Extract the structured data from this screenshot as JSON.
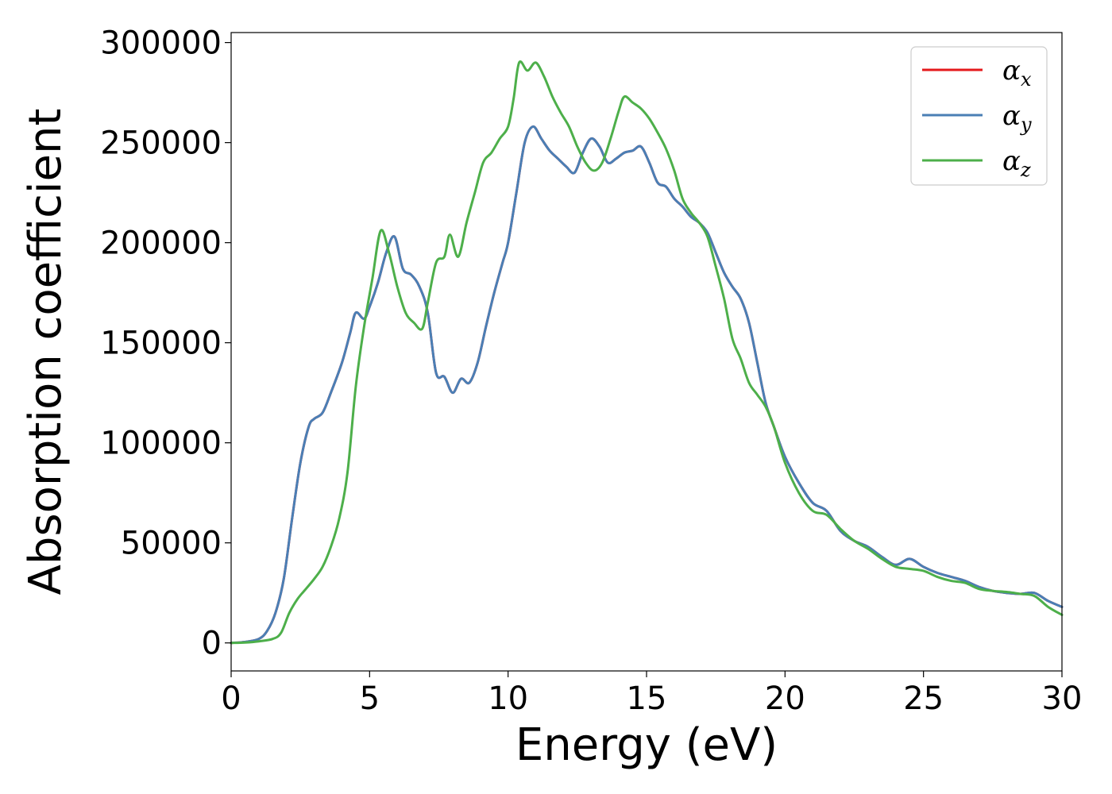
{
  "chart_data": {
    "type": "line",
    "title": "",
    "xlabel": "Energy (eV)",
    "ylabel": "Absorption coefficient",
    "xlim": [
      0,
      30
    ],
    "ylim": [
      -14000,
      305000
    ],
    "x_ticks": [
      0,
      5,
      10,
      15,
      20,
      25,
      30
    ],
    "y_ticks": [
      0,
      50000,
      100000,
      150000,
      200000,
      250000,
      300000
    ],
    "grid": false,
    "legend_position": "upper-right",
    "series": [
      {
        "name": "αx",
        "legend_symbol": "α",
        "legend_subscript": "x",
        "color": "#e41a1c",
        "x": [
          0,
          0.5,
          1.0,
          1.3,
          1.6,
          1.9,
          2.2,
          2.5,
          2.8,
          3.0,
          3.3,
          3.6,
          4.0,
          4.3,
          4.5,
          4.8,
          5.0,
          5.3,
          5.6,
          5.9,
          6.2,
          6.5,
          6.8,
          7.1,
          7.4,
          7.7,
          8.0,
          8.3,
          8.6,
          8.9,
          9.2,
          9.5,
          9.8,
          10.0,
          10.3,
          10.6,
          10.9,
          11.2,
          11.5,
          11.8,
          12.1,
          12.4,
          12.7,
          13.0,
          13.3,
          13.6,
          13.9,
          14.2,
          14.5,
          14.8,
          15.1,
          15.4,
          15.7,
          16.0,
          16.3,
          16.6,
          16.9,
          17.2,
          17.5,
          17.8,
          18.1,
          18.4,
          18.7,
          19.0,
          19.3,
          19.6,
          20.0,
          20.5,
          21.0,
          21.5,
          22.0,
          22.5,
          23.0,
          23.5,
          24.0,
          24.5,
          25.0,
          25.5,
          26.0,
          26.5,
          27.0,
          27.5,
          28.0,
          28.5,
          29.0,
          29.5,
          30.0
        ],
        "y": [
          0,
          500,
          2000,
          6000,
          15000,
          32000,
          62000,
          90000,
          108000,
          112000,
          115000,
          125000,
          140000,
          155000,
          165000,
          162000,
          168000,
          180000,
          195000,
          203000,
          187000,
          184000,
          178000,
          165000,
          135000,
          133000,
          125000,
          132000,
          130000,
          140000,
          158000,
          175000,
          190000,
          200000,
          225000,
          250000,
          258000,
          252000,
          246000,
          242000,
          238000,
          235000,
          245000,
          252000,
          248000,
          240000,
          242000,
          245000,
          246000,
          248000,
          240000,
          230000,
          228000,
          222000,
          218000,
          213000,
          210000,
          205000,
          195000,
          185000,
          178000,
          172000,
          160000,
          140000,
          120000,
          108000,
          93000,
          80000,
          70000,
          66000,
          56000,
          51000,
          48000,
          43000,
          39000,
          42000,
          38000,
          35000,
          33000,
          31000,
          28000,
          26000,
          25000,
          24500,
          25000,
          21000,
          18000
        ]
      },
      {
        "name": "αy",
        "legend_symbol": "α",
        "legend_subscript": "y",
        "color": "#4a7fb5",
        "x": [
          0,
          0.5,
          1.0,
          1.3,
          1.6,
          1.9,
          2.2,
          2.5,
          2.8,
          3.0,
          3.3,
          3.6,
          4.0,
          4.3,
          4.5,
          4.8,
          5.0,
          5.3,
          5.6,
          5.9,
          6.2,
          6.5,
          6.8,
          7.1,
          7.4,
          7.7,
          8.0,
          8.3,
          8.6,
          8.9,
          9.2,
          9.5,
          9.8,
          10.0,
          10.3,
          10.6,
          10.9,
          11.2,
          11.5,
          11.8,
          12.1,
          12.4,
          12.7,
          13.0,
          13.3,
          13.6,
          13.9,
          14.2,
          14.5,
          14.8,
          15.1,
          15.4,
          15.7,
          16.0,
          16.3,
          16.6,
          16.9,
          17.2,
          17.5,
          17.8,
          18.1,
          18.4,
          18.7,
          19.0,
          19.3,
          19.6,
          20.0,
          20.5,
          21.0,
          21.5,
          22.0,
          22.5,
          23.0,
          23.5,
          24.0,
          24.5,
          25.0,
          25.5,
          26.0,
          26.5,
          27.0,
          27.5,
          28.0,
          28.5,
          29.0,
          29.5,
          30.0
        ],
        "y": [
          0,
          500,
          2000,
          6000,
          15000,
          32000,
          62000,
          90000,
          108000,
          112000,
          115000,
          125000,
          140000,
          155000,
          165000,
          162000,
          168000,
          180000,
          195000,
          203000,
          187000,
          184000,
          178000,
          165000,
          135000,
          133000,
          125000,
          132000,
          130000,
          140000,
          158000,
          175000,
          190000,
          200000,
          225000,
          250000,
          258000,
          252000,
          246000,
          242000,
          238000,
          235000,
          245000,
          252000,
          248000,
          240000,
          242000,
          245000,
          246000,
          248000,
          240000,
          230000,
          228000,
          222000,
          218000,
          213000,
          210000,
          205000,
          195000,
          185000,
          178000,
          172000,
          160000,
          140000,
          120000,
          108000,
          93000,
          80000,
          70000,
          66000,
          56000,
          51000,
          48000,
          43000,
          39000,
          42000,
          38000,
          35000,
          33000,
          31000,
          28000,
          26000,
          25000,
          24500,
          25000,
          21000,
          18000
        ]
      },
      {
        "name": "αz",
        "legend_symbol": "α",
        "legend_subscript": "z",
        "color": "#4daf4a",
        "x": [
          0,
          0.5,
          1.0,
          1.5,
          1.8,
          2.1,
          2.4,
          2.7,
          3.0,
          3.3,
          3.6,
          3.9,
          4.2,
          4.5,
          4.8,
          5.1,
          5.4,
          5.7,
          6.0,
          6.3,
          6.6,
          6.9,
          7.1,
          7.4,
          7.7,
          7.9,
          8.2,
          8.5,
          8.8,
          9.1,
          9.4,
          9.7,
          10.0,
          10.2,
          10.4,
          10.7,
          11.0,
          11.3,
          11.6,
          11.9,
          12.2,
          12.5,
          12.8,
          13.1,
          13.4,
          13.7,
          14.0,
          14.2,
          14.5,
          14.8,
          15.1,
          15.4,
          15.7,
          16.0,
          16.3,
          16.6,
          16.9,
          17.2,
          17.5,
          17.8,
          18.1,
          18.4,
          18.7,
          19.0,
          19.3,
          19.6,
          20.0,
          20.5,
          21.0,
          21.5,
          22.0,
          22.5,
          23.0,
          23.5,
          24.0,
          24.5,
          25.0,
          25.5,
          26.0,
          26.5,
          27.0,
          27.5,
          28.0,
          28.5,
          29.0,
          29.5,
          30.0
        ],
        "y": [
          0,
          200,
          800,
          2000,
          5000,
          15000,
          22000,
          27000,
          32000,
          38000,
          48000,
          62000,
          85000,
          128000,
          158000,
          182000,
          206000,
          195000,
          178000,
          165000,
          160000,
          157000,
          170000,
          190000,
          193000,
          204000,
          193000,
          210000,
          225000,
          240000,
          245000,
          252000,
          258000,
          272000,
          290000,
          286000,
          290000,
          283000,
          273000,
          265000,
          258000,
          248000,
          240000,
          236000,
          240000,
          252000,
          266000,
          273000,
          270000,
          267000,
          262000,
          255000,
          247000,
          236000,
          222000,
          215000,
          210000,
          203000,
          188000,
          172000,
          152000,
          142000,
          130000,
          124000,
          118000,
          108000,
          90000,
          75000,
          66000,
          64000,
          57000,
          51000,
          47000,
          42000,
          38000,
          37000,
          36000,
          33000,
          31000,
          30000,
          27000,
          26000,
          25500,
          24500,
          23500,
          18000,
          14000
        ]
      }
    ]
  }
}
